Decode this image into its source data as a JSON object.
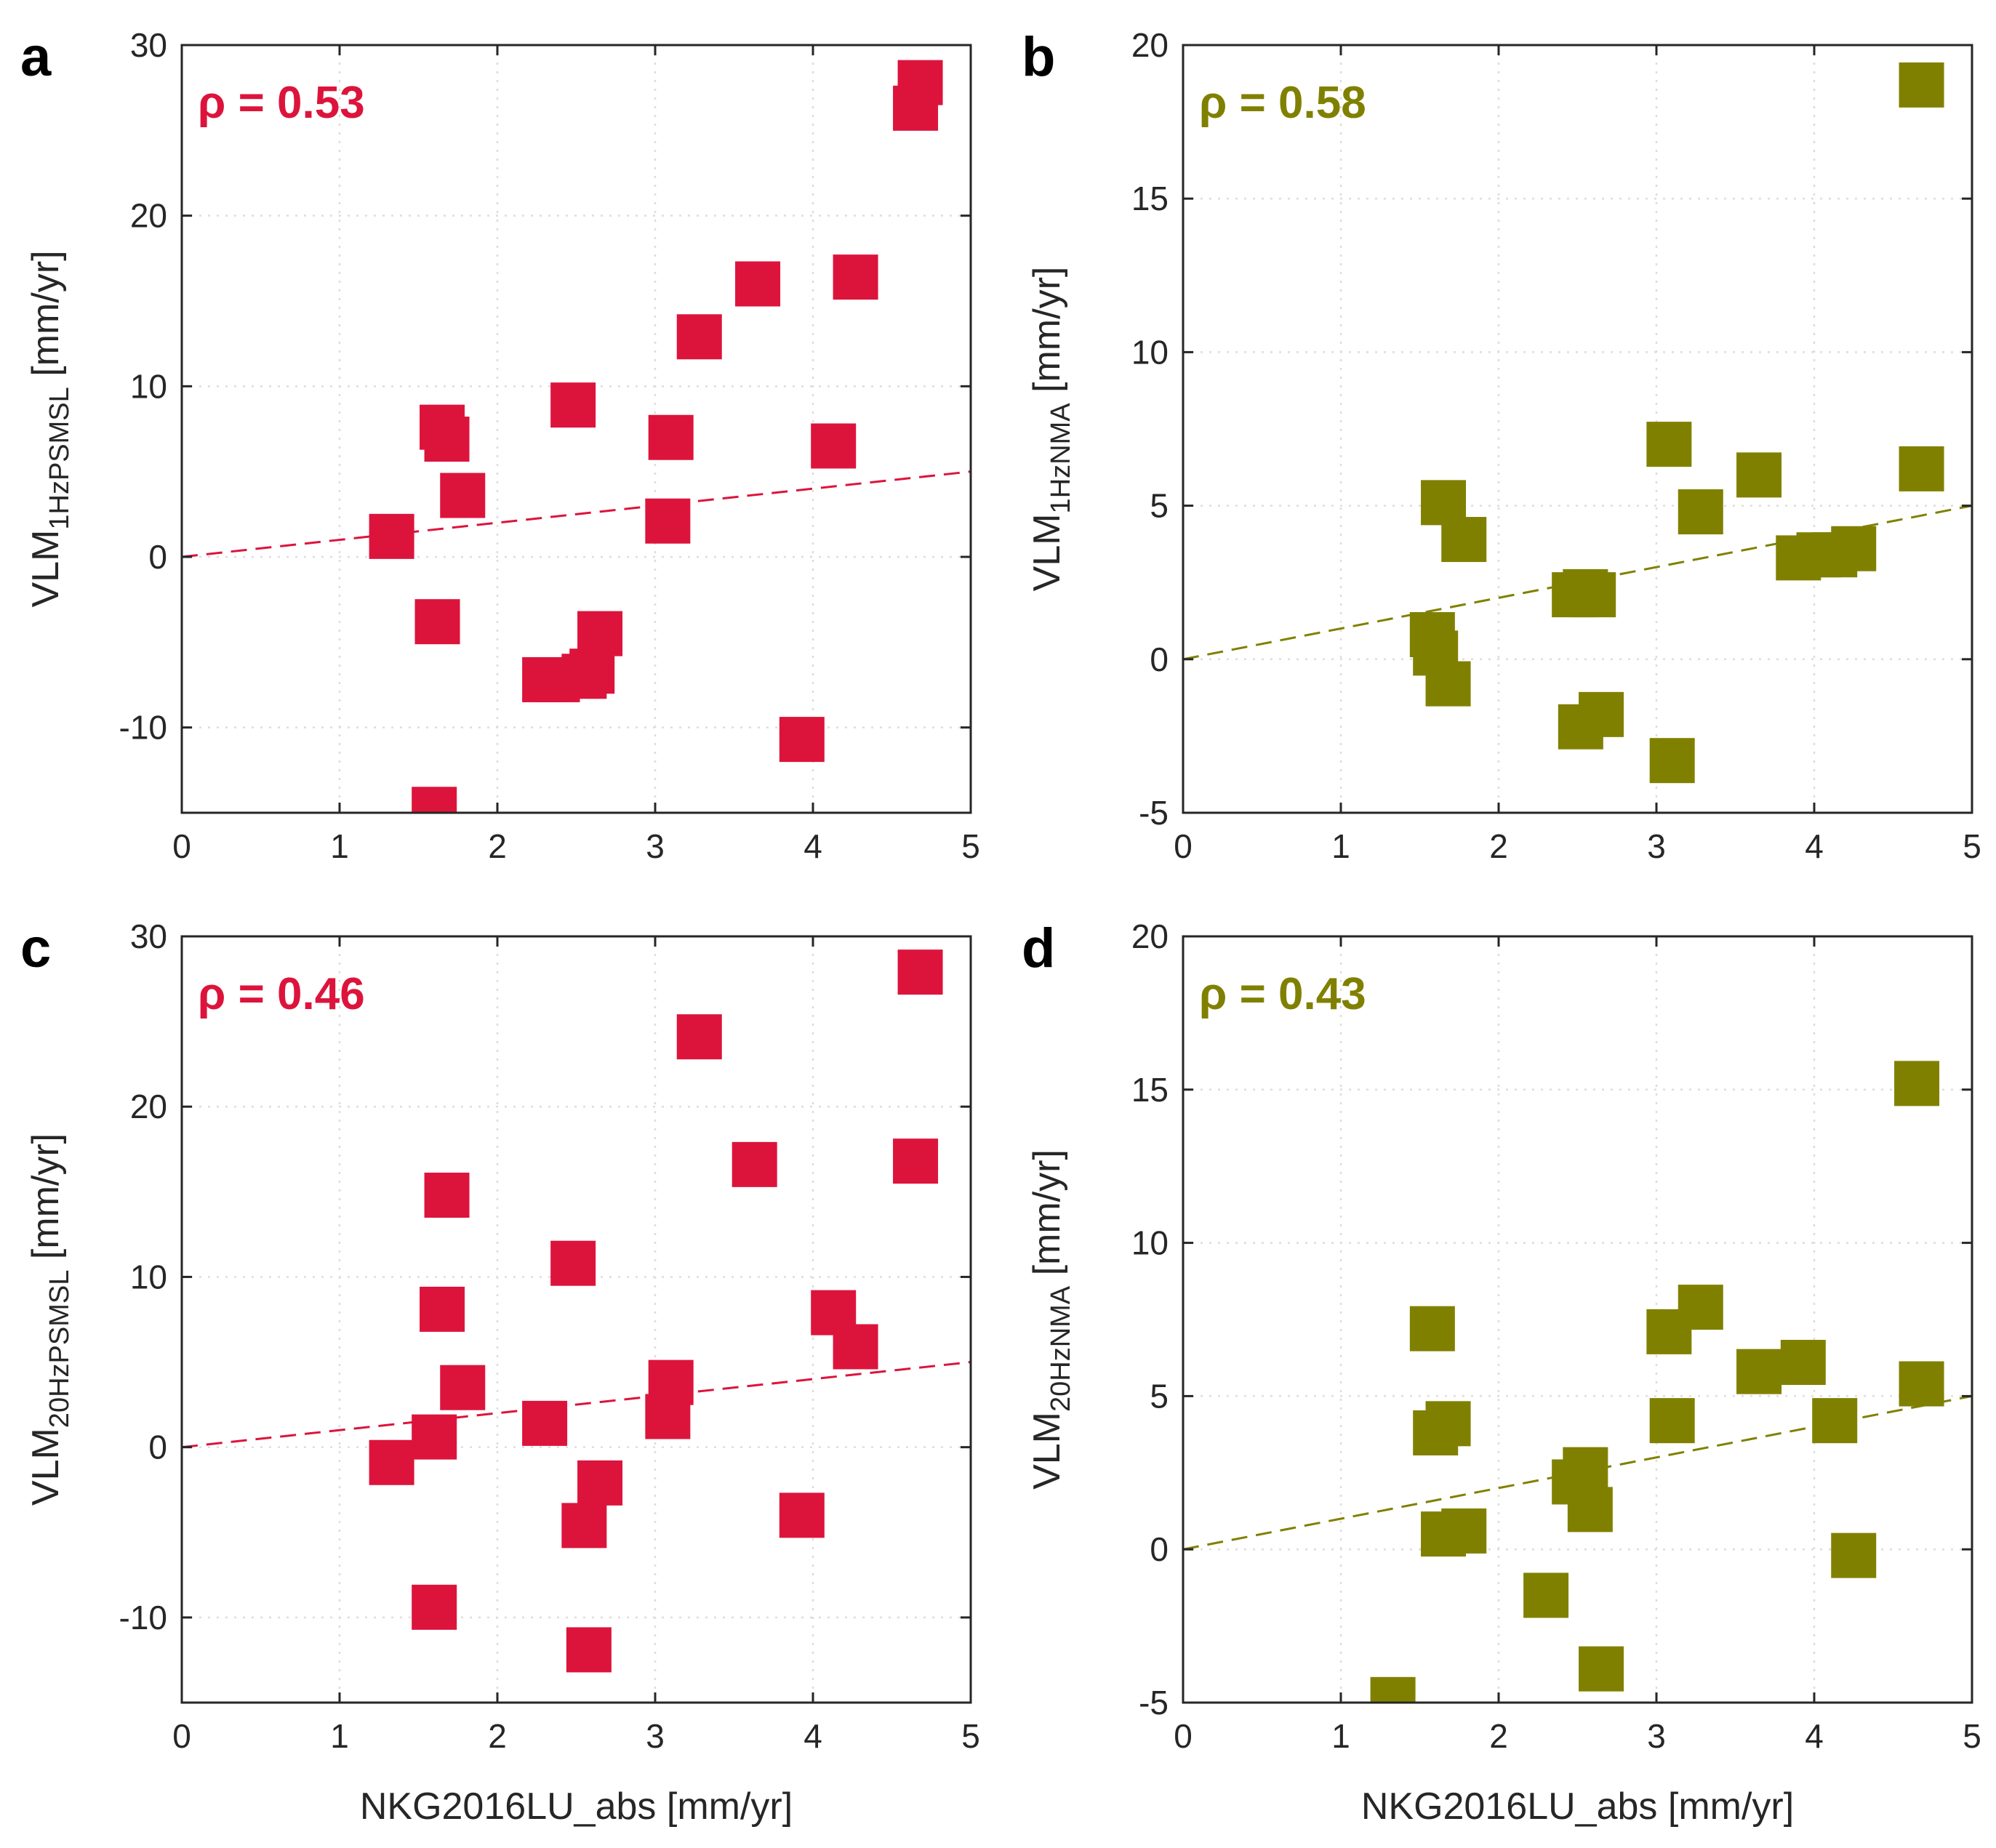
{
  "colors": {
    "red": "#DC143C",
    "olive": "#808000",
    "grid": "#dddddd",
    "axis": "#262626"
  },
  "shared": {
    "xlabel": "NKG2016LU_abs [mm/yr]",
    "x_ticks": [
      "0",
      "1",
      "2",
      "3",
      "4",
      "5"
    ],
    "y_unit": "[mm/yr]",
    "y_prefix": "VLM"
  },
  "chart_data": [
    {
      "type": "scatter",
      "panel_letter": "a",
      "rho_label": "ρ = 0.53",
      "ylabel_subscript": "1HzPSMSL",
      "color_key": "red",
      "xlim": [
        0,
        5
      ],
      "ylim": [
        -15,
        30
      ],
      "y_ticks": [
        "-10",
        "0",
        "10",
        "20",
        "30"
      ],
      "show_xlabel": false,
      "fit_line": {
        "x": [
          0,
          5
        ],
        "y": [
          0,
          5
        ]
      },
      "x": [
        1.33,
        1.6,
        1.62,
        1.65,
        1.68,
        1.78,
        2.3,
        2.38,
        2.48,
        2.55,
        2.6,
        2.65,
        3.08,
        3.1,
        3.28,
        3.65,
        3.93,
        4.13,
        4.27,
        4.65,
        4.68
      ],
      "y": [
        1.2,
        -14.8,
        -3.8,
        7.6,
        6.9,
        3.6,
        -7.2,
        -7.2,
        8.9,
        -7.0,
        -6.7,
        -4.5,
        2.1,
        7.0,
        12.9,
        16.0,
        -10.7,
        6.5,
        16.4,
        26.3,
        27.8
      ]
    },
    {
      "type": "scatter",
      "panel_letter": "b",
      "rho_label": "ρ = 0.58",
      "ylabel_subscript": "1HzNMA",
      "color_key": "olive",
      "xlim": [
        0,
        5
      ],
      "ylim": [
        -5,
        20
      ],
      "y_ticks": [
        "-5",
        "0",
        "5",
        "10",
        "15",
        "20"
      ],
      "show_xlabel": false,
      "fit_line": {
        "x": [
          0,
          5
        ],
        "y": [
          0,
          5
        ]
      },
      "x": [
        1.58,
        1.6,
        1.65,
        1.68,
        1.78,
        2.48,
        2.52,
        2.55,
        2.6,
        2.65,
        3.08,
        3.1,
        3.28,
        3.65,
        3.9,
        4.03,
        4.13,
        4.25,
        4.68,
        4.68
      ],
      "y": [
        0.8,
        0.2,
        5.1,
        -0.8,
        3.9,
        2.1,
        -2.2,
        2.2,
        2.1,
        -1.8,
        7.0,
        -3.3,
        4.8,
        6.0,
        3.3,
        3.4,
        3.4,
        3.6,
        6.2,
        18.7
      ]
    },
    {
      "type": "scatter",
      "panel_letter": "c",
      "rho_label": "ρ = 0.46",
      "ylabel_subscript": "20HzPSMSL",
      "color_key": "red",
      "xlim": [
        0,
        5
      ],
      "ylim": [
        -15,
        30
      ],
      "y_ticks": [
        "-10",
        "0",
        "10",
        "20",
        "30"
      ],
      "show_xlabel": true,
      "fit_line": {
        "x": [
          0,
          5
        ],
        "y": [
          0,
          5
        ]
      },
      "x": [
        1.33,
        1.6,
        1.6,
        1.65,
        1.68,
        1.78,
        2.3,
        2.48,
        2.55,
        2.58,
        2.65,
        3.08,
        3.1,
        3.28,
        3.63,
        3.93,
        4.13,
        4.27,
        4.65,
        4.68
      ],
      "y": [
        -0.9,
        -9.4,
        0.6,
        8.1,
        14.8,
        3.5,
        1.4,
        10.8,
        -4.6,
        -11.9,
        -2.1,
        1.8,
        3.8,
        24.1,
        16.6,
        -4.0,
        7.9,
        5.9,
        16.8,
        27.9
      ]
    },
    {
      "type": "scatter",
      "panel_letter": "d",
      "rho_label": "ρ = 0.43",
      "ylabel_subscript": "20HzNMA",
      "color_key": "olive",
      "xlim": [
        0,
        5
      ],
      "ylim": [
        -5,
        20
      ],
      "y_ticks": [
        "-5",
        "0",
        "5",
        "10",
        "15",
        "20"
      ],
      "show_xlabel": true,
      "fit_line": {
        "x": [
          0,
          5
        ],
        "y": [
          0,
          5
        ]
      },
      "x": [
        1.33,
        1.58,
        1.6,
        1.65,
        1.68,
        1.78,
        2.3,
        2.48,
        2.55,
        2.58,
        2.65,
        3.08,
        3.1,
        3.28,
        3.65,
        3.93,
        4.13,
        4.25,
        4.65,
        4.68
      ],
      "y": [
        -4.9,
        7.2,
        3.8,
        0.5,
        4.1,
        0.6,
        -1.5,
        2.2,
        2.6,
        1.3,
        -3.9,
        7.1,
        4.2,
        7.9,
        5.8,
        6.1,
        4.2,
        -0.2,
        15.2,
        5.4
      ]
    }
  ]
}
